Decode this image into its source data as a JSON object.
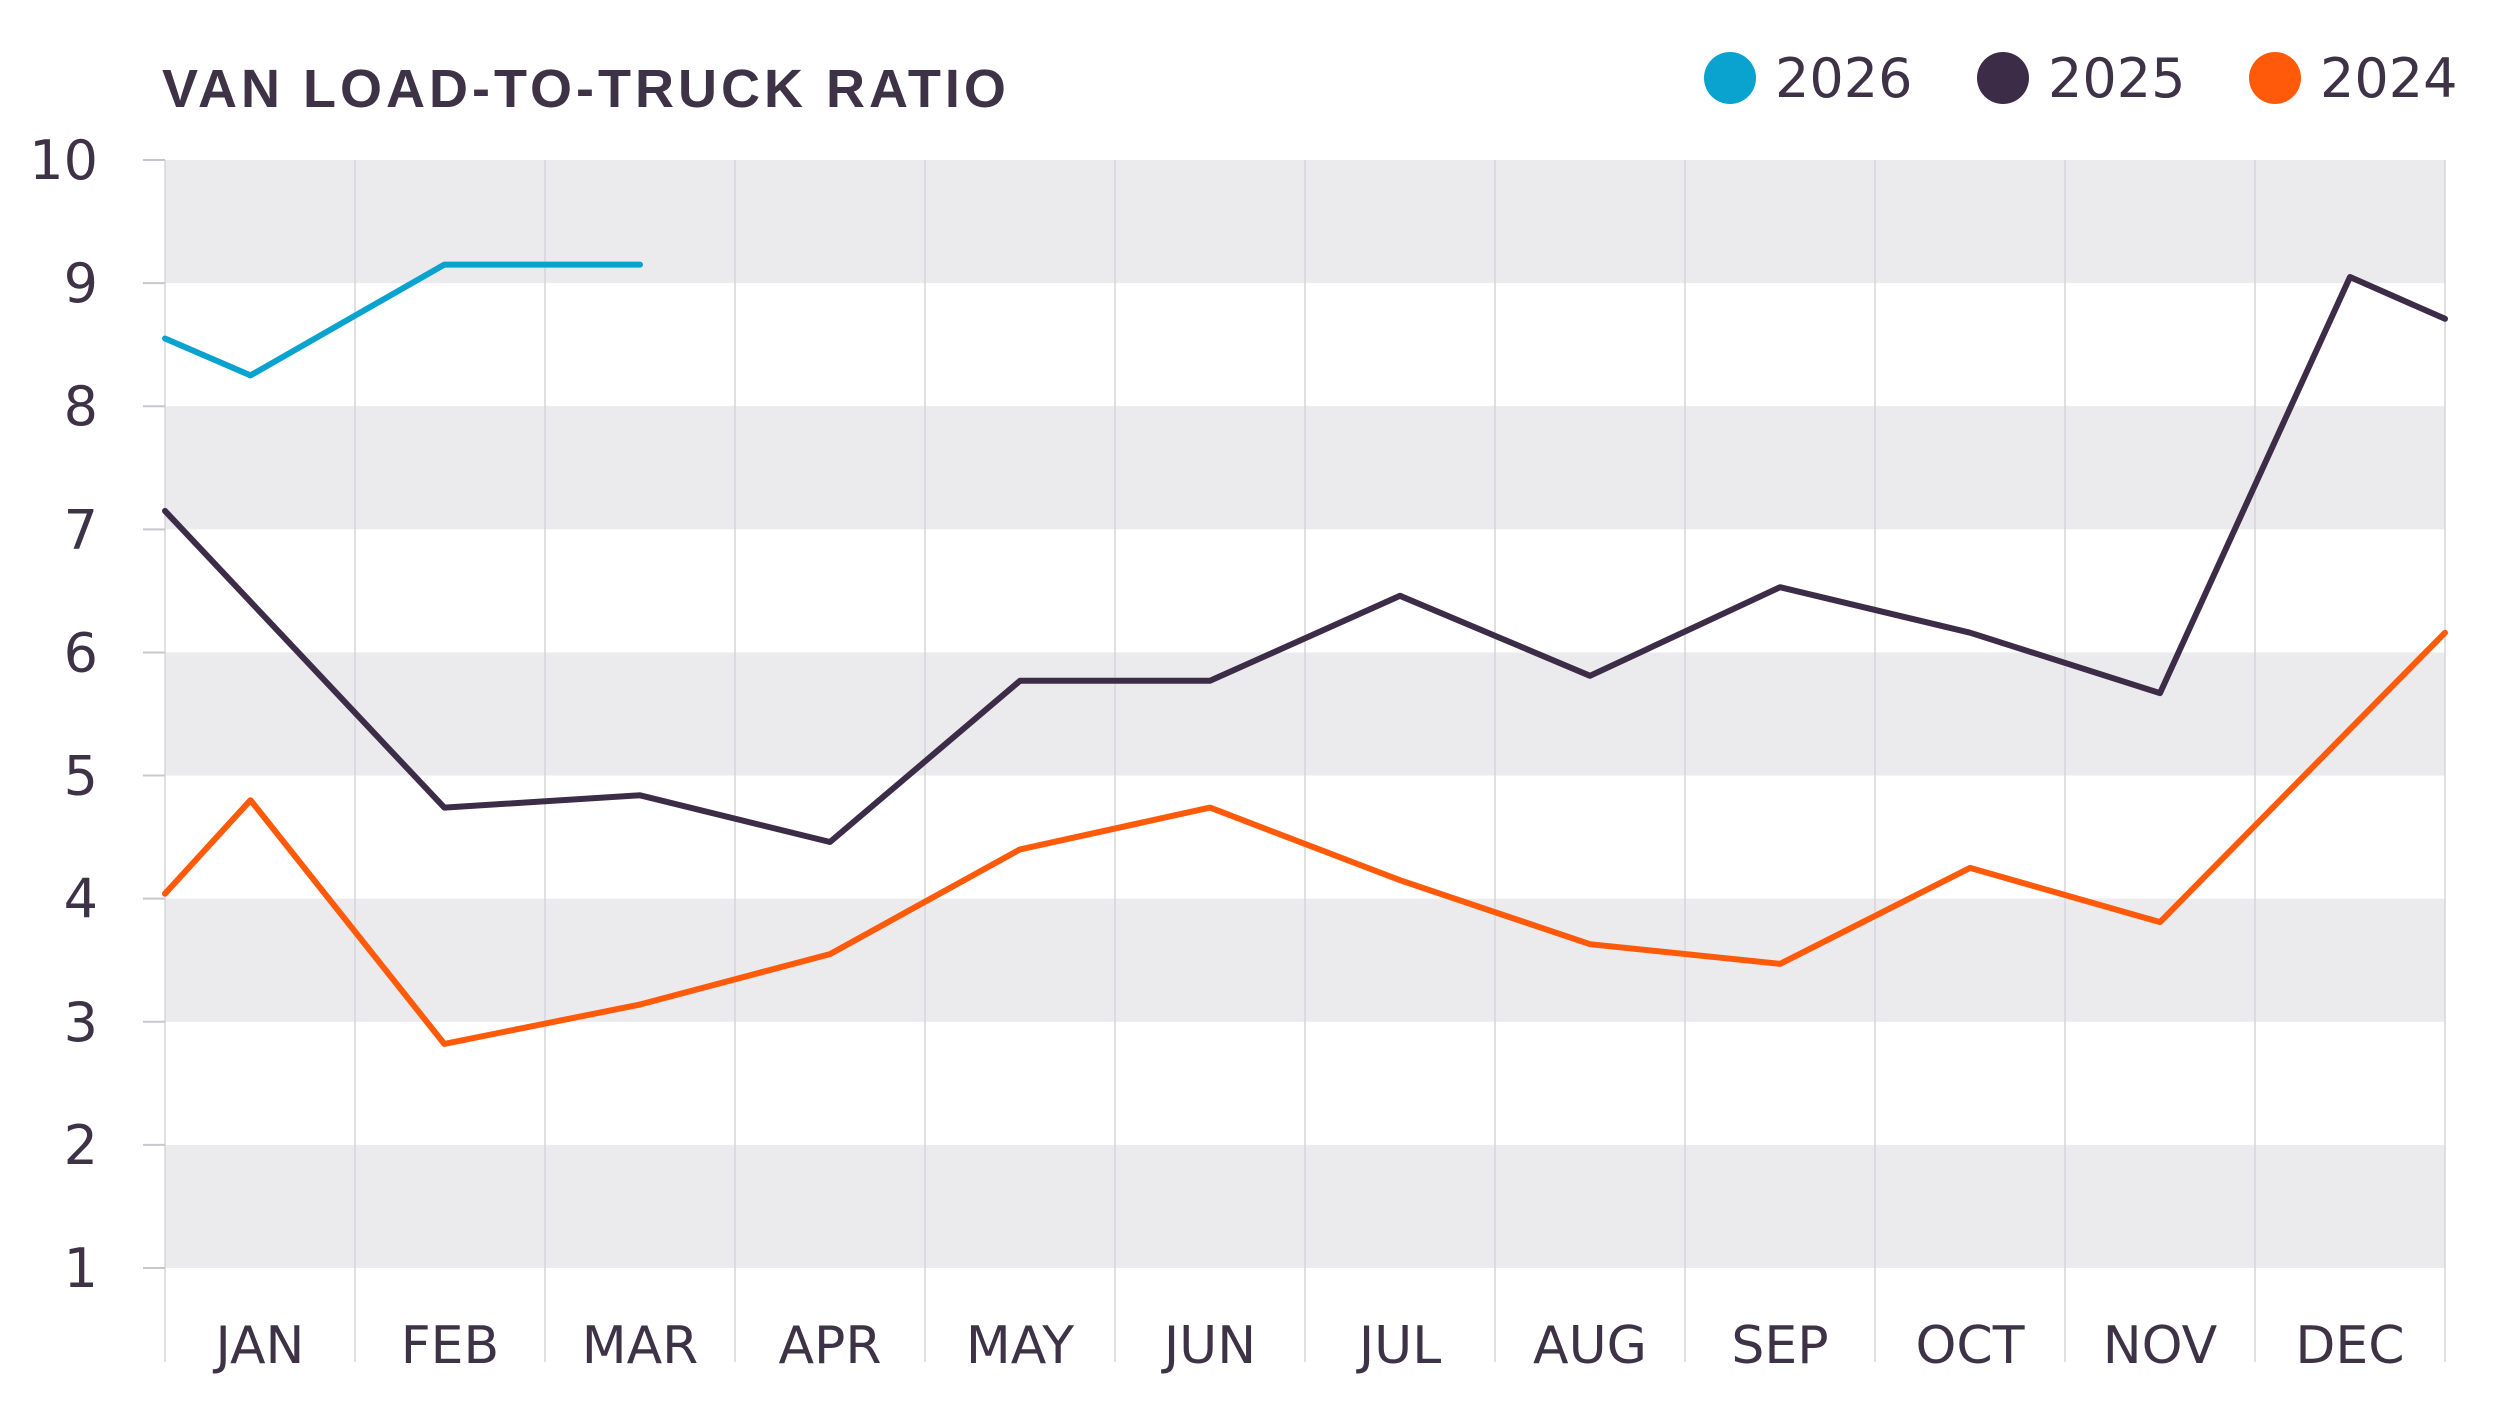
{
  "chart_data": {
    "type": "line",
    "title": "VAN LOAD-TO-TRUCK RATIO",
    "xlabel": "",
    "ylabel": "",
    "categories": [
      "JAN",
      "FEB",
      "MAR",
      "APR",
      "MAY",
      "JUN",
      "JUL",
      "AUG",
      "SEP",
      "OCT",
      "NOV",
      "DEC"
    ],
    "ylim": [
      1,
      10
    ],
    "yticks": [
      "1",
      "2",
      "3",
      "4",
      "5",
      "6",
      "7",
      "8",
      "9",
      "10"
    ],
    "grid": "alternating horizontal bands, vertical lines",
    "legend_position": "top-right",
    "series": [
      {
        "name": "2026",
        "color": "#0aa3cf",
        "x": [
          0,
          0.45,
          1.47,
          2.0,
          2.5
        ],
        "y": [
          8.55,
          8.25,
          9.15,
          9.15,
          9.15
        ]
      },
      {
        "name": "2025",
        "color": "#3d2c48",
        "x": [
          0,
          1.47,
          2.5,
          3.5,
          4.5,
          5.5,
          6.5,
          7.5,
          8.5,
          9.5,
          10.5,
          11.5,
          12.0
        ],
        "y": [
          7.15,
          4.74,
          4.84,
          4.46,
          5.77,
          5.77,
          6.46,
          5.81,
          6.53,
          6.16,
          5.67,
          9.05,
          8.71
        ]
      },
      {
        "name": "2024",
        "color": "#ff5a0a",
        "x": [
          0,
          0.45,
          1.47,
          2.5,
          3.5,
          4.5,
          5.5,
          6.5,
          7.5,
          8.5,
          9.5,
          10.5,
          12.0
        ],
        "y": [
          4.04,
          4.8,
          2.82,
          3.14,
          3.55,
          4.4,
          4.74,
          4.15,
          3.63,
          3.47,
          4.25,
          3.81,
          6.16
        ]
      }
    ]
  }
}
